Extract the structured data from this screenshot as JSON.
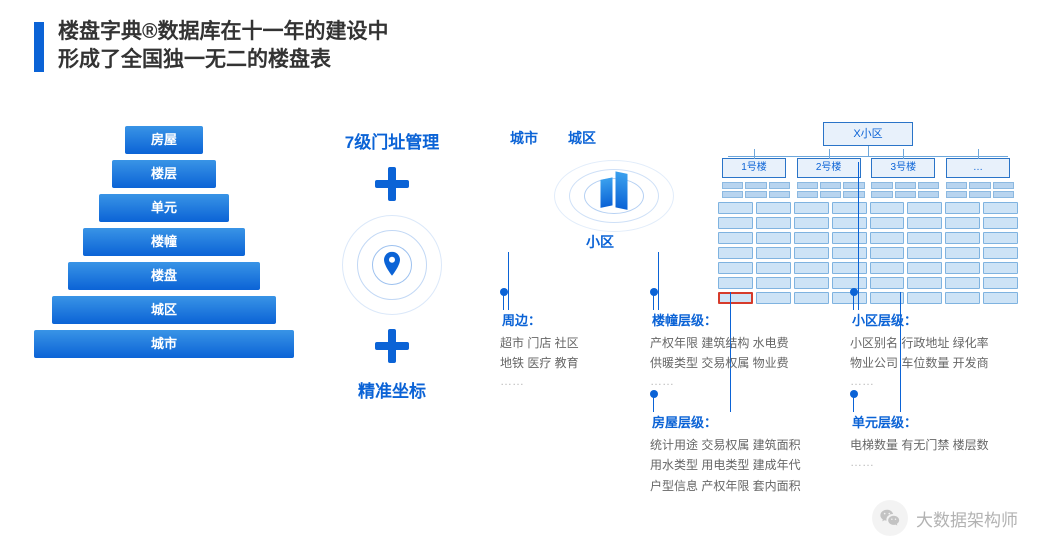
{
  "title": {
    "line1": "楼盘字典®数据库在十一年的建设中",
    "line2": "形成了全国独一无二的楼盘表"
  },
  "colors": {
    "accent": "#0b63d6",
    "text": "#333333",
    "muted": "#888888",
    "highlight_border": "#d63b2b",
    "background": "#ffffff"
  },
  "pyramid": {
    "levels": [
      {
        "label": "房屋",
        "width_pct": 30
      },
      {
        "label": "楼层",
        "width_pct": 40
      },
      {
        "label": "单元",
        "width_pct": 50
      },
      {
        "label": "楼幢",
        "width_pct": 62
      },
      {
        "label": "楼盘",
        "width_pct": 74
      },
      {
        "label": "城区",
        "width_pct": 86
      },
      {
        "label": "城市",
        "width_pct": 100
      }
    ]
  },
  "middle": {
    "top_label": "7级门址管理",
    "bottom_label": "精准坐标"
  },
  "right": {
    "labels": {
      "city": "城市",
      "zone": "城区",
      "xq": "小区"
    },
    "tree": {
      "root": "X小区",
      "children": [
        "1号楼",
        "2号楼",
        "3号楼",
        "…"
      ]
    },
    "grid": {
      "rows": 7,
      "cols": 8,
      "highlight": {
        "row": 6,
        "col": 0
      }
    },
    "details": {
      "zhoubian": {
        "head": "周边：",
        "lines": [
          "超市  门店  社区",
          "地铁  医疗  教育"
        ],
        "more": "……"
      },
      "louzhang": {
        "head": "楼幢层级：",
        "lines": [
          "产权年限  建筑结构  水电费",
          "供暖类型  交易权属  物业费"
        ],
        "more": "……"
      },
      "xiaoqu": {
        "head": "小区层级：",
        "lines": [
          "小区别名  行政地址  绿化率",
          "物业公司  车位数量  开发商"
        ],
        "more": "……"
      },
      "fangwu": {
        "head": "房屋层级：",
        "lines": [
          "统计用途  交易权属  建筑面积",
          "用水类型  用电类型  建成年代",
          "户型信息  产权年限  套内面积"
        ]
      },
      "danyuan": {
        "head": "单元层级：",
        "lines": [
          "电梯数量  有无门禁  楼层数"
        ],
        "more": "……"
      }
    }
  },
  "watermark": "大数据架构师"
}
